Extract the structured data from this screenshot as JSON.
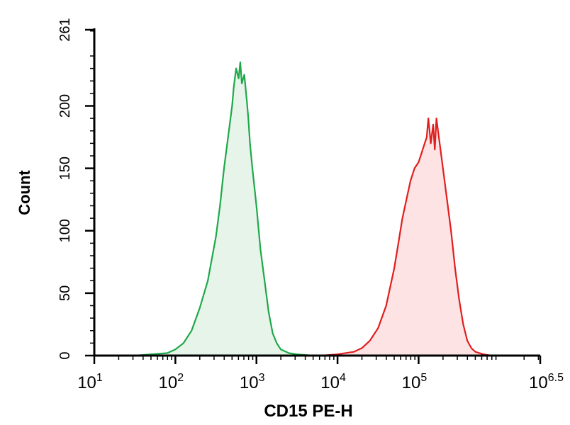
{
  "chart_data": {
    "type": "area",
    "xlabel": "CD15 PE-H",
    "ylabel": "Count",
    "x_scale": "log10",
    "xlim": [
      1,
      6.5
    ],
    "ylim": [
      0,
      261
    ],
    "x_ticks": [
      {
        "value": 1,
        "base": "10",
        "exp": "1"
      },
      {
        "value": 2,
        "base": "10",
        "exp": "2"
      },
      {
        "value": 3,
        "base": "10",
        "exp": "3"
      },
      {
        "value": 4,
        "base": "10",
        "exp": "4"
      },
      {
        "value": 5,
        "base": "10",
        "exp": "5"
      },
      {
        "value": 6.5,
        "base": "10",
        "exp": "6.5"
      }
    ],
    "y_ticks": [
      "0",
      "50",
      "100",
      "150",
      "200",
      "261"
    ],
    "grid": false,
    "legend": "none",
    "series": [
      {
        "color": "#1fa84a",
        "fill": "#e6f4ea",
        "x": [
          1.0,
          1.5,
          1.7,
          1.9,
          2.0,
          2.1,
          2.2,
          2.3,
          2.4,
          2.5,
          2.55,
          2.6,
          2.65,
          2.7,
          2.72,
          2.75,
          2.78,
          2.8,
          2.82,
          2.85,
          2.88,
          2.9,
          2.92,
          2.95,
          3.0,
          3.05,
          3.1,
          3.15,
          3.2,
          3.25,
          3.3,
          3.4,
          3.5,
          3.7,
          4.0
        ],
        "y": [
          0,
          0,
          1,
          2,
          5,
          10,
          20,
          38,
          60,
          95,
          120,
          150,
          175,
          200,
          215,
          230,
          222,
          235,
          218,
          225,
          205,
          190,
          170,
          150,
          120,
          85,
          60,
          35,
          18,
          10,
          5,
          2,
          1,
          0,
          0
        ]
      },
      {
        "color": "#e01e1e",
        "fill": "#fde3e4",
        "x": [
          3.8,
          4.0,
          4.2,
          4.3,
          4.4,
          4.5,
          4.6,
          4.7,
          4.75,
          4.8,
          4.85,
          4.9,
          4.95,
          5.0,
          5.05,
          5.1,
          5.12,
          5.15,
          5.18,
          5.2,
          5.22,
          5.25,
          5.28,
          5.3,
          5.35,
          5.4,
          5.45,
          5.5,
          5.55,
          5.6,
          5.65,
          5.7,
          5.8,
          5.9,
          6.0
        ],
        "y": [
          0,
          1,
          3,
          6,
          12,
          22,
          40,
          70,
          90,
          110,
          125,
          140,
          150,
          155,
          165,
          175,
          190,
          170,
          185,
          165,
          190,
          175,
          160,
          150,
          125,
          100,
          70,
          45,
          25,
          12,
          6,
          3,
          1,
          0,
          0
        ]
      }
    ]
  }
}
